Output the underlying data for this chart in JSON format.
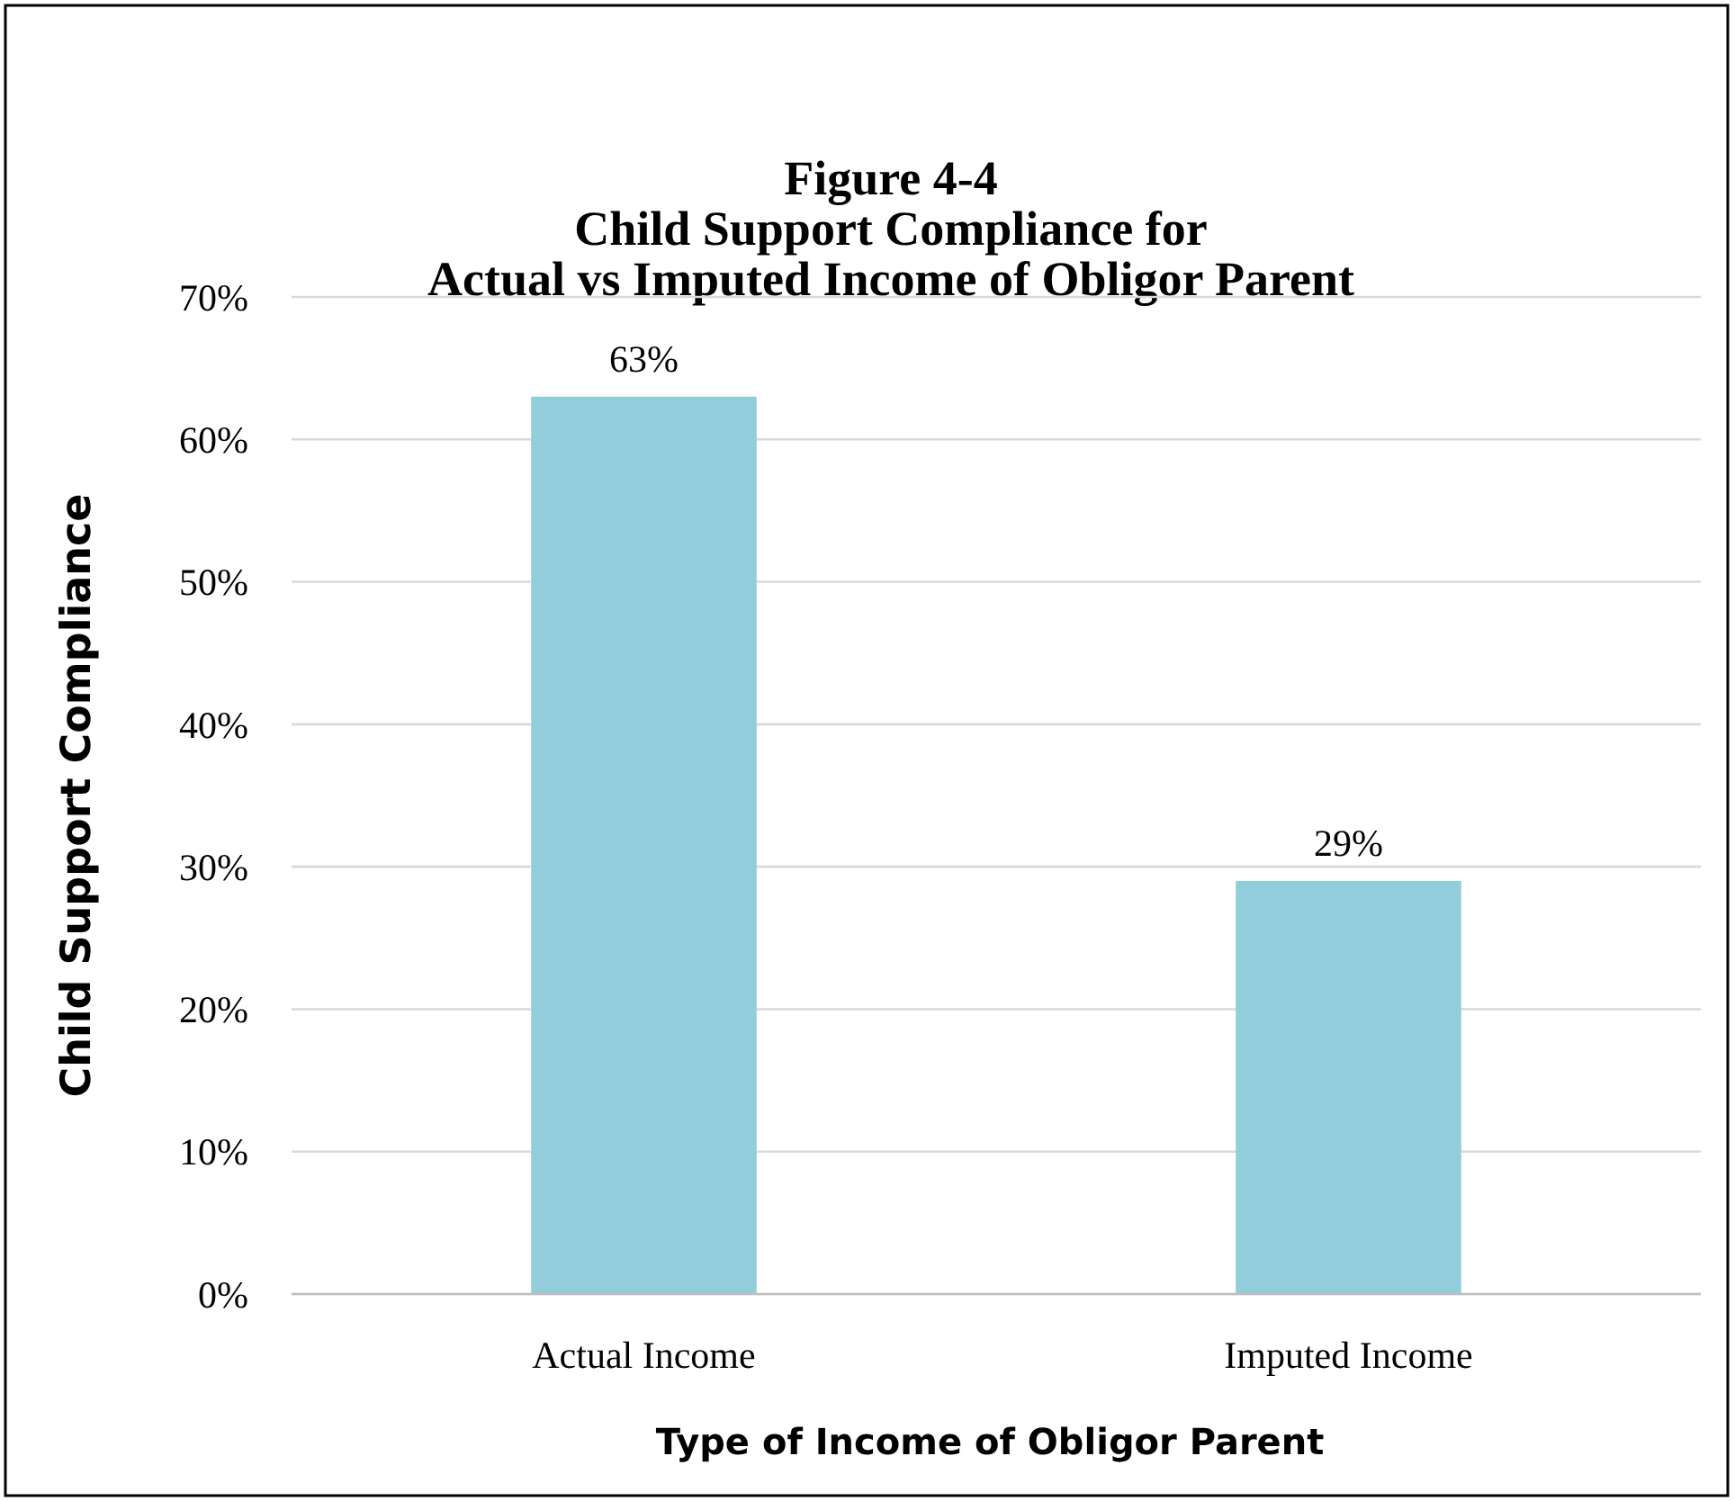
{
  "chart_data": {
    "type": "bar",
    "title": "Figure 4-4\nChild Support Compliance for\nActual vs Imputed Income of Obligor Parent",
    "xlabel": "Type of Income of Obligor Parent",
    "ylabel": "Child Support Compliance",
    "categories": [
      "Actual Income",
      "Imputed Income"
    ],
    "values": [
      63,
      29
    ],
    "color": "#92cddc",
    "value_labels": [
      "63%",
      "29%"
    ],
    "ylim": [
      0,
      70
    ],
    "yticks": [
      {
        "value": 0,
        "label": "0%"
      },
      {
        "value": 10,
        "label": "10%"
      },
      {
        "value": 20,
        "label": "20%"
      },
      {
        "value": 30,
        "label": "30%"
      },
      {
        "value": 40,
        "label": "40%"
      },
      {
        "value": 50,
        "label": "50%"
      },
      {
        "value": 60,
        "label": "60%"
      },
      {
        "value": 70,
        "label": "70%"
      }
    ],
    "grid": "y"
  }
}
